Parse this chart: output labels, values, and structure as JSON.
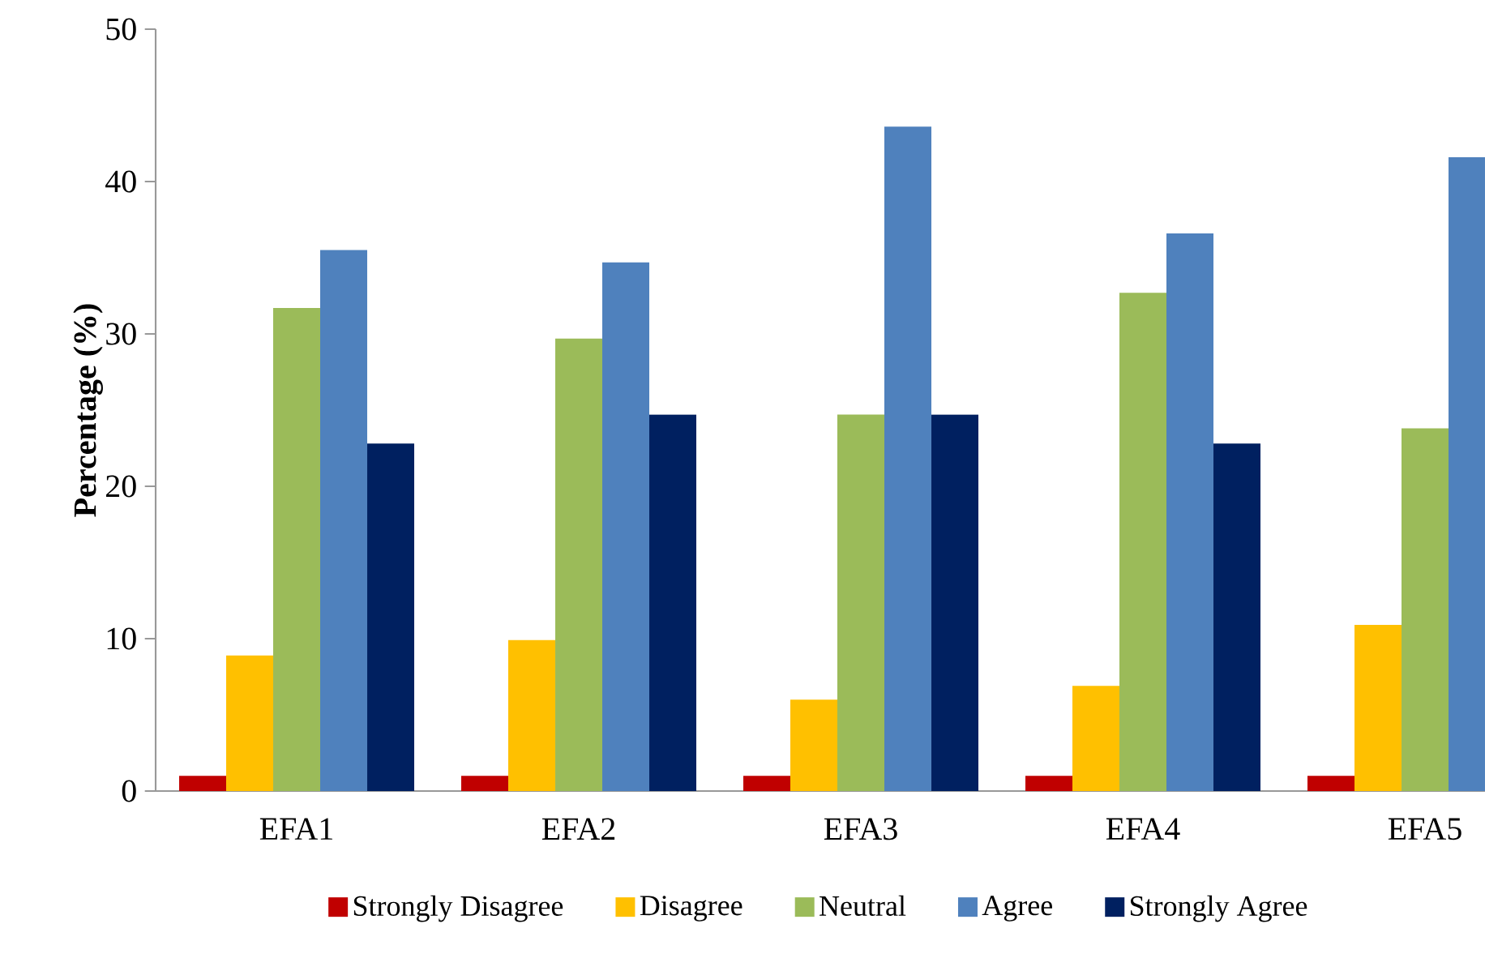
{
  "chart_data": {
    "type": "bar",
    "ylabel": "Percentage (%)",
    "categories": [
      "EFA1",
      "EFA2",
      "EFA3",
      "EFA4",
      "EFA5"
    ],
    "series": [
      {
        "name": "Strongly Disagree",
        "color": "#c00000",
        "values": [
          1,
          1,
          1,
          1,
          1
        ]
      },
      {
        "name": "Disagree",
        "color": "#ffc000",
        "values": [
          8.9,
          9.9,
          6.0,
          6.9,
          10.9
        ]
      },
      {
        "name": "Neutral",
        "color": "#9bbb59",
        "values": [
          31.7,
          29.7,
          24.7,
          32.7,
          23.8
        ]
      },
      {
        "name": "Agree",
        "color": "#4f81bd",
        "values": [
          35.5,
          34.7,
          43.6,
          36.6,
          41.6
        ]
      },
      {
        "name": "Strongly Agree",
        "color": "#002060",
        "values": [
          22.8,
          24.7,
          24.7,
          22.8,
          null
        ]
      }
    ],
    "ylim": [
      0,
      50
    ],
    "yticks": [
      0,
      10,
      20,
      30,
      40,
      50
    ],
    "grid": false,
    "legend": "bottom"
  }
}
